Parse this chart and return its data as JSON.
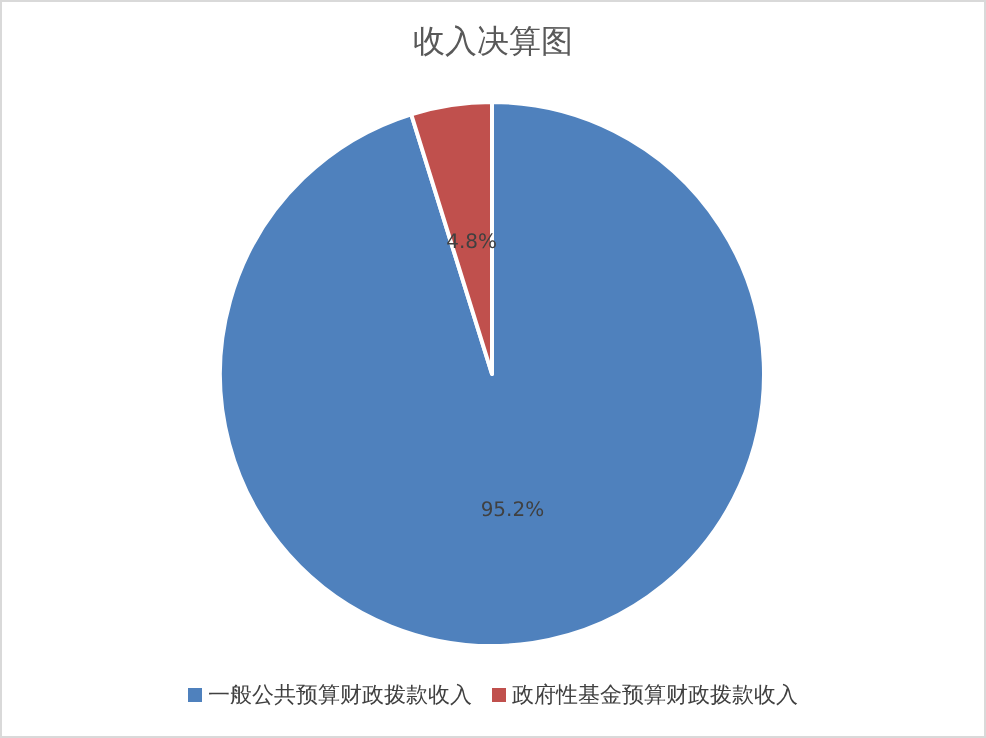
{
  "chart_data": {
    "type": "pie",
    "title": "收入决算图",
    "categories": [
      "一般公共预算财政拨款收入",
      "政府性基金预算财政拨款收入"
    ],
    "values": [
      95.2,
      4.8
    ],
    "colors": [
      "#4f81bd",
      "#c0504d"
    ],
    "value_labels": [
      "95.2%",
      "4.8%"
    ],
    "legend": "bottom"
  }
}
